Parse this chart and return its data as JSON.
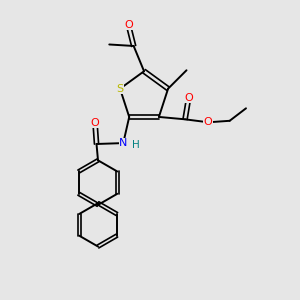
{
  "background_color": "#e6e6e6",
  "atom_colors": {
    "S": "#b8b800",
    "N": "#0000ff",
    "O": "#ff0000",
    "H": "#008080",
    "C": "#000000"
  },
  "figsize": [
    3.0,
    3.0
  ],
  "dpi": 100
}
